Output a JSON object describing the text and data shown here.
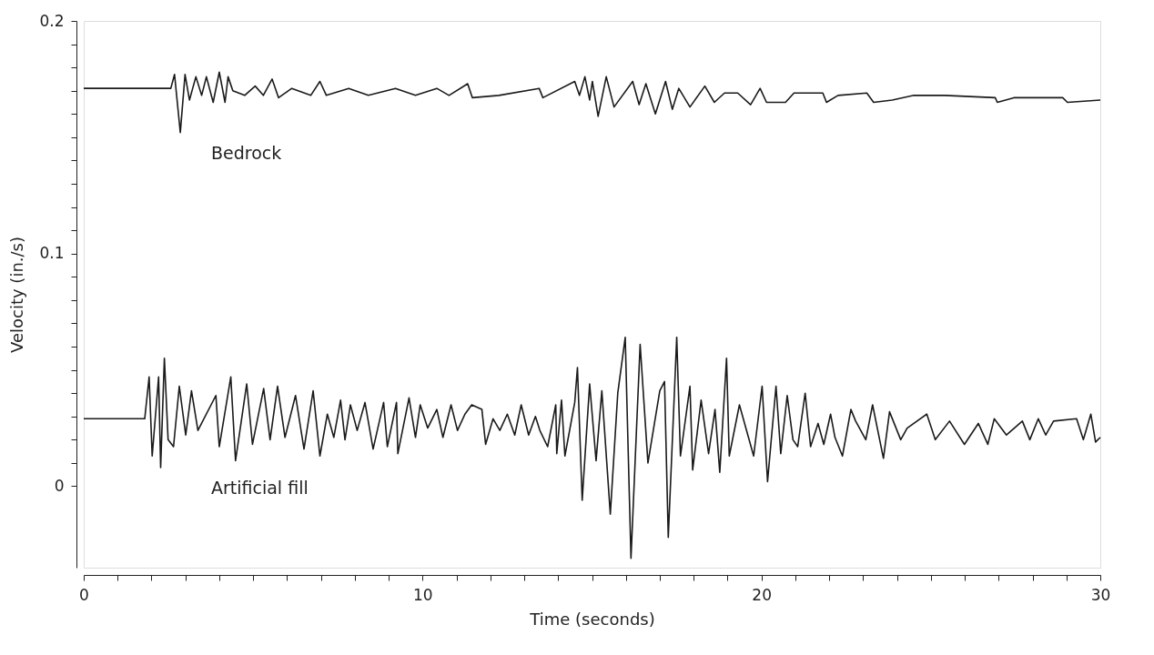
{
  "chart_data": {
    "type": "line",
    "xlabel": "Time (seconds)",
    "ylabel": "Velocity (in./s)",
    "xlim": [
      0,
      30
    ],
    "ylim": [
      -0.035,
      0.2
    ],
    "xticks": [
      0,
      {
        "value": 1,
        "label": null
      },
      {
        "value": 2,
        "label": null
      },
      {
        "value": 3,
        "label": null
      },
      {
        "value": 4,
        "label": null
      },
      {
        "value": 5,
        "label": null
      },
      {
        "value": 6,
        "label": null
      },
      {
        "value": 7,
        "label": null
      },
      {
        "value": 8,
        "label": null
      },
      {
        "value": 9,
        "label": null
      },
      10,
      {
        "value": 11,
        "label": null
      },
      {
        "value": 12,
        "label": null
      },
      {
        "value": 13,
        "label": null
      },
      {
        "value": 14,
        "label": null
      },
      {
        "value": 15,
        "label": null
      },
      {
        "value": 16,
        "label": null
      },
      {
        "value": 17,
        "label": null
      },
      {
        "value": 18,
        "label": null
      },
      {
        "value": 19,
        "label": null
      },
      20,
      {
        "value": 21,
        "label": null
      },
      {
        "value": 22,
        "label": null
      },
      {
        "value": 23,
        "label": null
      },
      {
        "value": 24,
        "label": null
      },
      {
        "value": 25,
        "label": null
      },
      {
        "value": 26,
        "label": null
      },
      {
        "value": 27,
        "label": null
      },
      {
        "value": 28,
        "label": null
      },
      {
        "value": 29,
        "label": null
      },
      30
    ],
    "yticks": [
      0,
      {
        "value": 0.01,
        "label": null
      },
      {
        "value": 0.02,
        "label": null
      },
      {
        "value": 0.03,
        "label": null
      },
      {
        "value": 0.04,
        "label": null
      },
      {
        "value": 0.05,
        "label": null
      },
      {
        "value": 0.06,
        "label": null
      },
      {
        "value": 0.07,
        "label": null
      },
      {
        "value": 0.08,
        "label": null
      },
      {
        "value": 0.09,
        "label": null
      },
      0.1,
      {
        "value": 0.11,
        "label": null
      },
      {
        "value": 0.12,
        "label": null
      },
      {
        "value": 0.13,
        "label": null
      },
      {
        "value": 0.14,
        "label": null
      },
      {
        "value": 0.15,
        "label": null
      },
      {
        "value": 0.16,
        "label": null
      },
      {
        "value": 0.17,
        "label": null
      },
      {
        "value": 0.18,
        "label": null
      },
      {
        "value": 0.19,
        "label": null
      },
      0.2
    ],
    "grid": false,
    "legend": false,
    "marker": "none",
    "line_style": "solid",
    "series": [
      {
        "name": "Bedrock",
        "color": "#1a1a1a",
        "x": [
          0,
          2.57,
          2.68,
          2.85,
          2.99,
          3.12,
          3.31,
          3.48,
          3.62,
          3.82,
          4.0,
          4.17,
          4.26,
          4.4,
          4.75,
          5.06,
          5.3,
          5.56,
          5.75,
          6.14,
          6.7,
          6.97,
          7.16,
          7.82,
          8.4,
          9.2,
          9.79,
          10.42,
          10.78,
          11.33,
          11.47,
          12.25,
          13.44,
          13.55,
          14.49,
          14.63,
          14.79,
          14.93,
          15.01,
          15.18,
          15.42,
          15.65,
          16.2,
          16.39,
          16.59,
          16.87,
          17.17,
          17.37,
          17.56,
          17.89,
          18.33,
          18.61,
          18.91,
          19.3,
          19.68,
          19.96,
          20.15,
          20.71,
          20.96,
          21.81,
          21.92,
          22.26,
          23.11,
          23.31,
          23.86,
          24.5,
          25.41,
          26.9,
          26.96,
          27.45,
          28.89,
          29.03,
          30
        ],
        "values": [
          0.171,
          0.171,
          0.177,
          0.152,
          0.177,
          0.166,
          0.176,
          0.168,
          0.176,
          0.165,
          0.178,
          0.165,
          0.176,
          0.17,
          0.168,
          0.172,
          0.168,
          0.175,
          0.167,
          0.171,
          0.168,
          0.174,
          0.168,
          0.171,
          0.168,
          0.171,
          0.168,
          0.171,
          0.168,
          0.173,
          0.167,
          0.168,
          0.171,
          0.167,
          0.174,
          0.168,
          0.176,
          0.166,
          0.174,
          0.159,
          0.176,
          0.163,
          0.174,
          0.164,
          0.173,
          0.16,
          0.174,
          0.162,
          0.171,
          0.163,
          0.172,
          0.165,
          0.169,
          0.169,
          0.164,
          0.171,
          0.165,
          0.165,
          0.169,
          0.169,
          0.165,
          0.168,
          0.169,
          0.165,
          0.166,
          0.168,
          0.168,
          0.167,
          0.165,
          0.167,
          0.167,
          0.165,
          0.166
        ]
      },
      {
        "name": "Artificial fill",
        "color": "#1a1a1a",
        "x": [
          0,
          1.8,
          1.93,
          2.02,
          2.21,
          2.27,
          2.38,
          2.49,
          2.65,
          2.82,
          3.01,
          3.18,
          3.37,
          3.9,
          4.0,
          4.34,
          4.48,
          4.81,
          4.98,
          5.31,
          5.5,
          5.72,
          5.94,
          6.25,
          6.5,
          6.77,
          6.97,
          7.19,
          7.38,
          7.58,
          7.71,
          7.87,
          8.07,
          8.3,
          8.54,
          8.85,
          8.96,
          9.23,
          9.27,
          9.6,
          9.79,
          9.93,
          10.15,
          10.42,
          10.6,
          10.84,
          11.03,
          11.25,
          11.45,
          11.75,
          11.86,
          12.08,
          12.28,
          12.5,
          12.72,
          12.91,
          13.13,
          13.33,
          13.46,
          13.69,
          13.93,
          13.96,
          14.1,
          14.2,
          14.49,
          14.57,
          14.71,
          14.93,
          15.12,
          15.29,
          15.54,
          15.76,
          15.98,
          16.15,
          16.42,
          16.65,
          17.0,
          17.14,
          17.25,
          17.5,
          17.61,
          17.89,
          17.97,
          18.22,
          18.44,
          18.63,
          18.77,
          18.97,
          19.05,
          19.35,
          19.77,
          20.02,
          20.18,
          20.43,
          20.57,
          20.76,
          20.93,
          21.07,
          21.29,
          21.45,
          21.67,
          21.84,
          22.04,
          22.17,
          22.39,
          22.64,
          22.78,
          23.08,
          23.28,
          23.6,
          23.78,
          24.11,
          24.3,
          24.88,
          25.13,
          25.55,
          25.99,
          26.4,
          26.68,
          26.87,
          27.23,
          27.7,
          27.92,
          28.17,
          28.39,
          28.62,
          29.3,
          29.5,
          29.72,
          29.86,
          30
        ],
        "values": [
          0.029,
          0.029,
          0.047,
          0.013,
          0.047,
          0.008,
          0.055,
          0.02,
          0.017,
          0.043,
          0.022,
          0.041,
          0.024,
          0.039,
          0.017,
          0.047,
          0.011,
          0.044,
          0.018,
          0.042,
          0.02,
          0.043,
          0.021,
          0.039,
          0.016,
          0.041,
          0.013,
          0.031,
          0.021,
          0.037,
          0.02,
          0.035,
          0.024,
          0.036,
          0.016,
          0.036,
          0.017,
          0.036,
          0.014,
          0.038,
          0.021,
          0.035,
          0.025,
          0.033,
          0.021,
          0.035,
          0.024,
          0.031,
          0.035,
          0.033,
          0.018,
          0.029,
          0.024,
          0.031,
          0.022,
          0.035,
          0.022,
          0.03,
          0.024,
          0.017,
          0.035,
          0.014,
          0.037,
          0.013,
          0.036,
          0.051,
          -0.006,
          0.044,
          0.011,
          0.041,
          -0.012,
          0.04,
          0.064,
          -0.031,
          0.061,
          0.01,
          0.041,
          0.045,
          -0.022,
          0.064,
          0.013,
          0.043,
          0.007,
          0.037,
          0.014,
          0.033,
          0.006,
          0.055,
          0.013,
          0.035,
          0.013,
          0.043,
          0.002,
          0.043,
          0.014,
          0.039,
          0.02,
          0.017,
          0.04,
          0.017,
          0.027,
          0.018,
          0.031,
          0.021,
          0.013,
          0.033,
          0.028,
          0.02,
          0.035,
          0.012,
          0.032,
          0.02,
          0.025,
          0.031,
          0.02,
          0.028,
          0.018,
          0.027,
          0.018,
          0.029,
          0.022,
          0.028,
          0.02,
          0.029,
          0.022,
          0.028,
          0.029,
          0.02,
          0.031,
          0.019,
          0.021
        ]
      }
    ]
  }
}
